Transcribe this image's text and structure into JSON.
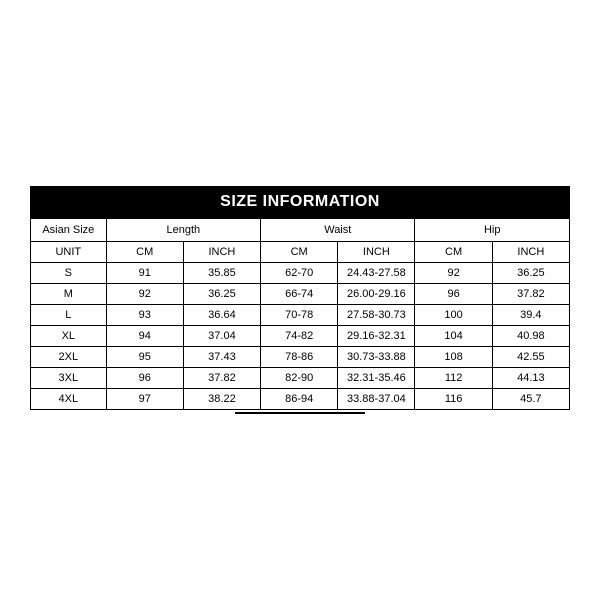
{
  "title": "SIZE INFORMATION",
  "header": {
    "size_label": "Asian Size",
    "unit_label": "UNIT",
    "groups": [
      "Length",
      "Waist",
      "Hip"
    ],
    "units": [
      "CM",
      "INCH",
      "CM",
      "INCH",
      "CM",
      "INCH"
    ]
  },
  "rows": [
    {
      "size": "S",
      "cells": [
        "91",
        "35.85",
        "62-70",
        "24.43-27.58",
        "92",
        "36.25"
      ]
    },
    {
      "size": "M",
      "cells": [
        "92",
        "36.25",
        "66-74",
        "26.00-29.16",
        "96",
        "37.82"
      ]
    },
    {
      "size": "L",
      "cells": [
        "93",
        "36.64",
        "70-78",
        "27.58-30.73",
        "100",
        "39.4"
      ]
    },
    {
      "size": "XL",
      "cells": [
        "94",
        "37.04",
        "74-82",
        "29.16-32.31",
        "104",
        "40.98"
      ]
    },
    {
      "size": "2XL",
      "cells": [
        "95",
        "37.43",
        "78-86",
        "30.73-33.88",
        "108",
        "42.55"
      ]
    },
    {
      "size": "3XL",
      "cells": [
        "96",
        "37.82",
        "82-90",
        "32.31-35.46",
        "112",
        "44.13"
      ]
    },
    {
      "size": "4XL",
      "cells": [
        "97",
        "38.22",
        "86-94",
        "33.88-37.04",
        "116",
        "45.7"
      ]
    }
  ],
  "style": {
    "title_bg": "#000000",
    "title_color": "#ffffff",
    "border_color": "#000000",
    "cell_bg": "#ffffff",
    "font_size_title": 16,
    "font_size_body": 11
  }
}
